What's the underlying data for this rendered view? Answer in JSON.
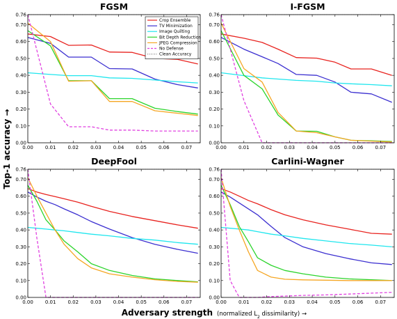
{
  "chart_data": [
    {
      "type": "line",
      "title": "FGSM",
      "x": [
        0,
        0.01,
        0.018,
        0.028,
        0.036,
        0.046,
        0.056,
        0.066,
        0.075
      ],
      "xlim": [
        0,
        0.076
      ],
      "ylim": [
        0,
        0.76
      ],
      "xticks": [
        "0.00",
        "0.01",
        "0.02",
        "0.03",
        "0.04",
        "0.05",
        "0.06",
        "0.07"
      ],
      "yticks": [
        "0.00",
        "0.10",
        "0.20",
        "0.30",
        "0.40",
        "0.50",
        "0.60",
        "0.70",
        "0.76"
      ],
      "series": [
        {
          "name": "Crop Ensemble",
          "color": "#e8231f",
          "values": [
            0.645,
            0.63,
            0.578,
            0.58,
            0.538,
            0.536,
            0.5,
            0.495,
            0.467
          ]
        },
        {
          "name": "TV Minimization",
          "color": "#3b2fd0",
          "values": [
            0.625,
            0.59,
            0.508,
            0.508,
            0.44,
            0.438,
            0.378,
            0.345,
            0.325
          ]
        },
        {
          "name": "Image Quilting",
          "color": "#1fe6ee",
          "values": [
            0.415,
            0.405,
            0.398,
            0.398,
            0.385,
            0.382,
            0.372,
            0.362,
            0.355
          ]
        },
        {
          "name": "Bit Depth Reduction",
          "color": "#2bd42b",
          "values": [
            0.665,
            0.575,
            0.368,
            0.368,
            0.262,
            0.262,
            0.205,
            0.185,
            0.17
          ]
        },
        {
          "name": "JPEG Compression",
          "color": "#f5a623",
          "values": [
            0.71,
            0.6,
            0.365,
            0.368,
            0.245,
            0.245,
            0.19,
            0.175,
            0.162
          ]
        },
        {
          "name": "No Defense",
          "color": "#e040e0",
          "dashed": true,
          "values": [
            0.76,
            0.23,
            0.095,
            0.095,
            0.075,
            0.075,
            0.07,
            0.07,
            0.07
          ]
        }
      ],
      "clean_accuracy": 0.76
    },
    {
      "type": "line",
      "title": "I-FGSM",
      "x": [
        0,
        0.01,
        0.018,
        0.025,
        0.033,
        0.042,
        0.05,
        0.057,
        0.066,
        0.075
      ],
      "xlim": [
        0,
        0.076
      ],
      "ylim": [
        0,
        0.76
      ],
      "xticks": [
        "0.00",
        "0.01",
        "0.02",
        "0.03",
        "0.04",
        "0.05",
        "0.06",
        "0.07"
      ],
      "yticks": [
        "0.00",
        "0.10",
        "0.20",
        "0.30",
        "0.40",
        "0.50",
        "0.60",
        "0.70",
        "0.76"
      ],
      "series": [
        {
          "name": "Crop Ensemble",
          "color": "#e8231f",
          "values": [
            0.645,
            0.62,
            0.595,
            0.555,
            0.505,
            0.502,
            0.478,
            0.438,
            0.438,
            0.4
          ]
        },
        {
          "name": "TV Minimization",
          "color": "#3b2fd0",
          "values": [
            0.625,
            0.555,
            0.51,
            0.47,
            0.405,
            0.4,
            0.36,
            0.3,
            0.29,
            0.24
          ]
        },
        {
          "name": "Image Quilting",
          "color": "#1fe6ee",
          "values": [
            0.415,
            0.398,
            0.385,
            0.378,
            0.37,
            0.365,
            0.355,
            0.35,
            0.345,
            0.338
          ]
        },
        {
          "name": "Bit Depth Reduction",
          "color": "#2bd42b",
          "values": [
            0.665,
            0.4,
            0.32,
            0.165,
            0.07,
            0.068,
            0.035,
            0.015,
            0.012,
            0.008
          ]
        },
        {
          "name": "JPEG Compression",
          "color": "#f5a623",
          "values": [
            0.71,
            0.44,
            0.36,
            0.18,
            0.07,
            0.06,
            0.035,
            0.015,
            0.01,
            0.005
          ]
        },
        {
          "name": "No Defense",
          "color": "#e040e0",
          "dashed": true,
          "values": [
            0.76,
            0.25,
            0.0,
            0.0,
            0.0,
            0.0,
            0.0,
            0.0,
            0.0,
            0.0
          ]
        }
      ],
      "clean_accuracy": 0.76
    },
    {
      "type": "line",
      "title": "DeepFool",
      "x": [
        0,
        0.004,
        0.008,
        0.012,
        0.016,
        0.022,
        0.028,
        0.036,
        0.046,
        0.056,
        0.066,
        0.075
      ],
      "xlim": [
        0,
        0.076
      ],
      "ylim": [
        0,
        0.76
      ],
      "xticks": [
        "0.00",
        "0.01",
        "0.02",
        "0.03",
        "0.04",
        "0.05",
        "0.06",
        "0.07"
      ],
      "yticks": [
        "0.00",
        "0.10",
        "0.20",
        "0.30",
        "0.40",
        "0.50",
        "0.60",
        "0.70",
        "0.76"
      ],
      "series": [
        {
          "name": "Crop Ensemble",
          "color": "#e8231f",
          "values": [
            0.645,
            0.625,
            0.61,
            0.598,
            0.585,
            0.565,
            0.54,
            0.51,
            0.48,
            0.455,
            0.43,
            0.41
          ]
        },
        {
          "name": "TV Minimization",
          "color": "#3b2fd0",
          "values": [
            0.625,
            0.595,
            0.57,
            0.55,
            0.525,
            0.49,
            0.45,
            0.405,
            0.355,
            0.315,
            0.285,
            0.262
          ]
        },
        {
          "name": "Image Quilting",
          "color": "#1fe6ee",
          "values": [
            0.415,
            0.41,
            0.405,
            0.4,
            0.395,
            0.385,
            0.375,
            0.365,
            0.35,
            0.34,
            0.325,
            0.315
          ]
        },
        {
          "name": "Bit Depth Reduction",
          "color": "#2bd42b",
          "values": [
            0.665,
            0.57,
            0.46,
            0.4,
            0.335,
            0.27,
            0.2,
            0.16,
            0.13,
            0.11,
            0.1,
            0.092
          ]
        },
        {
          "name": "JPEG Compression",
          "color": "#f5a623",
          "values": [
            0.71,
            0.6,
            0.5,
            0.4,
            0.315,
            0.23,
            0.175,
            0.14,
            0.12,
            0.105,
            0.095,
            0.09
          ]
        },
        {
          "name": "No Defense",
          "color": "#e040e0",
          "dashed": true,
          "values": [
            0.76,
            0.35,
            0.0,
            0.0,
            0.0,
            0.0,
            0.0,
            0.0,
            0.0,
            0.0,
            0.0,
            0.0
          ]
        }
      ],
      "clean_accuracy": 0.76
    },
    {
      "type": "line",
      "title": "Carlini-Wagner",
      "x": [
        0,
        0.004,
        0.008,
        0.012,
        0.016,
        0.022,
        0.028,
        0.036,
        0.046,
        0.056,
        0.066,
        0.075
      ],
      "xlim": [
        0,
        0.076
      ],
      "ylim": [
        0,
        0.76
      ],
      "xticks": [
        "0.00",
        "0.01",
        "0.02",
        "0.03",
        "0.04",
        "0.05",
        "0.06",
        "0.07"
      ],
      "yticks": [
        "0.00",
        "0.10",
        "0.20",
        "0.30",
        "0.40",
        "0.50",
        "0.60",
        "0.70",
        "0.76"
      ],
      "series": [
        {
          "name": "Crop Ensemble",
          "color": "#e8231f",
          "values": [
            0.645,
            0.625,
            0.6,
            0.575,
            0.555,
            0.52,
            0.49,
            0.46,
            0.43,
            0.405,
            0.38,
            0.375
          ]
        },
        {
          "name": "TV Minimization",
          "color": "#3b2fd0",
          "values": [
            0.625,
            0.595,
            0.56,
            0.525,
            0.49,
            0.42,
            0.355,
            0.3,
            0.26,
            0.23,
            0.205,
            0.195
          ]
        },
        {
          "name": "Image Quilting",
          "color": "#1fe6ee",
          "values": [
            0.415,
            0.41,
            0.405,
            0.4,
            0.39,
            0.375,
            0.365,
            0.35,
            0.335,
            0.32,
            0.31,
            0.3
          ]
        },
        {
          "name": "Bit Depth Reduction",
          "color": "#2bd42b",
          "values": [
            0.665,
            0.55,
            0.42,
            0.33,
            0.235,
            0.19,
            0.16,
            0.14,
            0.12,
            0.11,
            0.105,
            0.1
          ]
        },
        {
          "name": "JPEG Compression",
          "color": "#f5a623",
          "values": [
            0.71,
            0.54,
            0.4,
            0.27,
            0.16,
            0.12,
            0.108,
            0.104,
            0.102,
            0.1,
            0.1,
            0.1
          ]
        },
        {
          "name": "No Defense",
          "color": "#e040e0",
          "dashed": true,
          "values": [
            0.76,
            0.1,
            0.0,
            0.0,
            0.0,
            0.005,
            0.008,
            0.012,
            0.015,
            0.02,
            0.025,
            0.03
          ]
        }
      ],
      "clean_accuracy": 0.76
    }
  ],
  "figure": {
    "ylabel": "Top-1 accuracy →",
    "xlabel_main": "Adversary strength",
    "xlabel_sub_pre": "(normalized L",
    "xlabel_sub_index": "2",
    "xlabel_sub_post": " dissimilarity) →",
    "clean_accuracy_label": "Clean Accuracy",
    "clean_accuracy_color": "#888888"
  }
}
